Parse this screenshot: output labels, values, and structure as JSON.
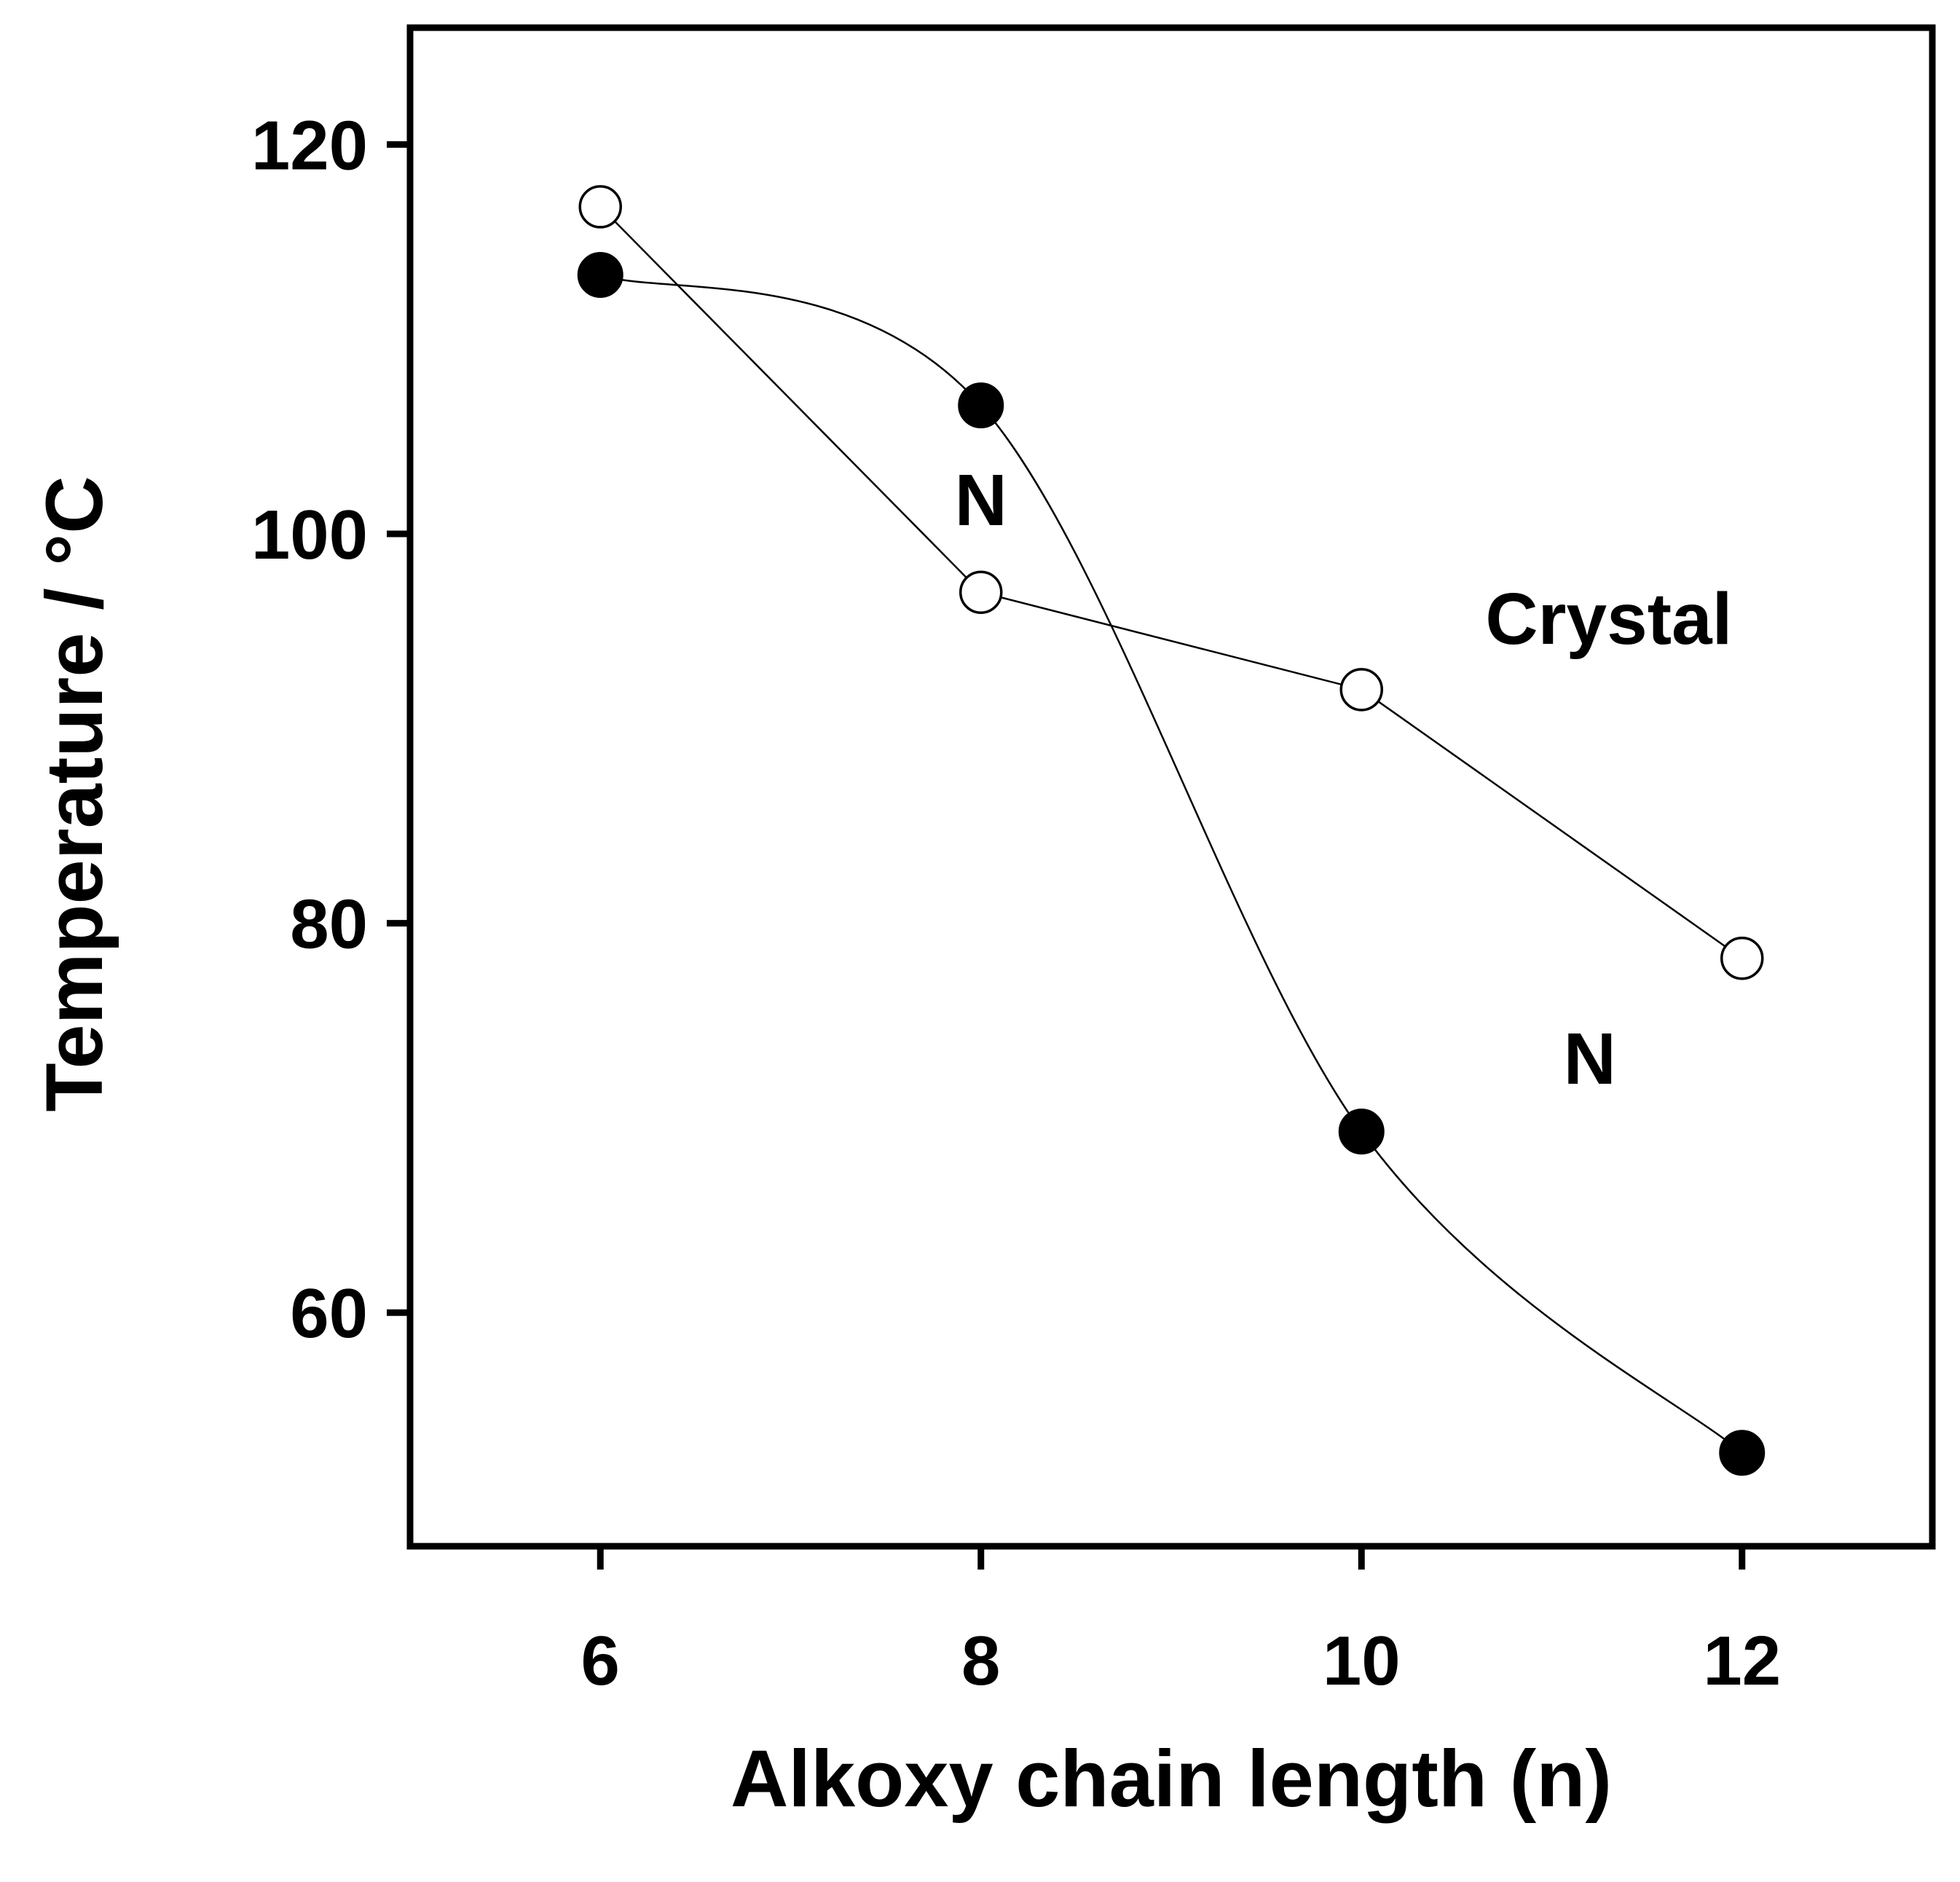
{
  "chart_data": {
    "type": "scatter",
    "title": "",
    "xlabel": "Alkoxy chain length (n)",
    "ylabel": "Temperature / °C",
    "xlim": [
      5,
      13
    ],
    "ylim": [
      48,
      126
    ],
    "xticks": [
      6,
      8,
      10,
      12
    ],
    "yticks": [
      60,
      80,
      100,
      120
    ],
    "xtick_labels": [
      "6",
      "8",
      "10",
      "12"
    ],
    "ytick_labels": [
      "60",
      "80",
      "100",
      "120"
    ],
    "grid": false,
    "legend": "none",
    "series": [
      {
        "name": "open circles",
        "marker": "open-circle",
        "line": "straight",
        "x": [
          6,
          8,
          10,
          12
        ],
        "y": [
          116.8,
          97.0,
          92.0,
          78.2
        ]
      },
      {
        "name": "filled circles",
        "marker": "filled-circle",
        "line": "smooth",
        "x": [
          6,
          8,
          10,
          12
        ],
        "y": [
          113.3,
          106.6,
          69.3,
          52.8
        ]
      }
    ],
    "annotations": [
      {
        "text": "N",
        "x": 8.0,
        "y": 101.8
      },
      {
        "text": "Crystal",
        "x": 11.3,
        "y": 95.7
      },
      {
        "text": "N",
        "x": 11.2,
        "y": 73.1
      }
    ]
  }
}
